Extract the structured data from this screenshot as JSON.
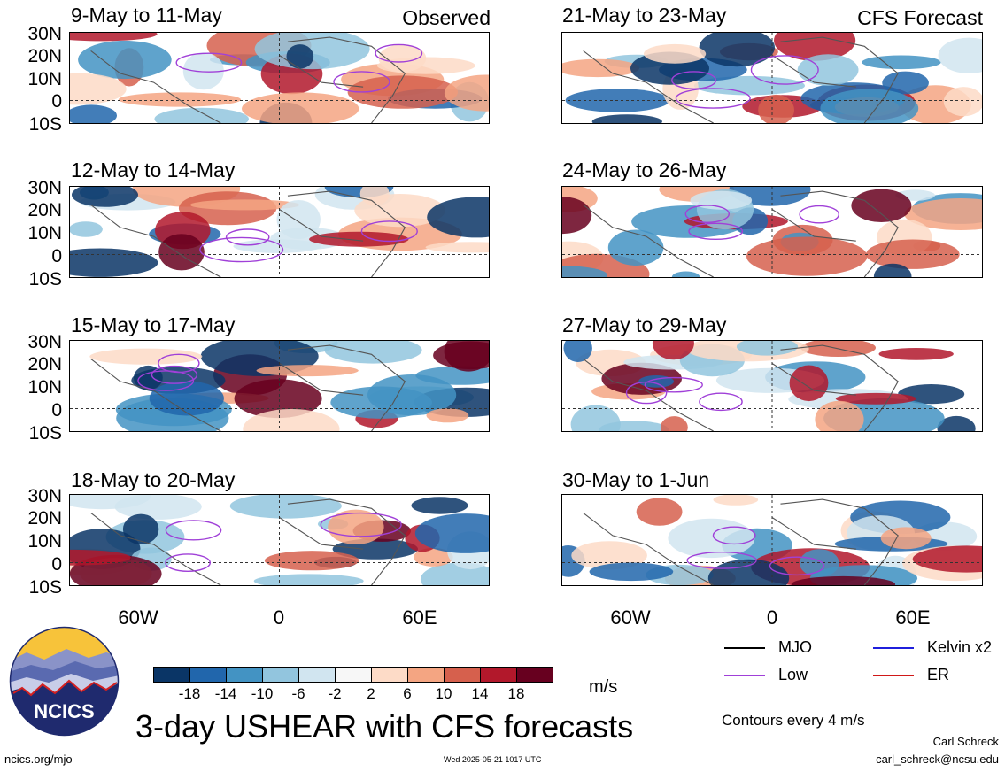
{
  "header": {
    "left_tag": "Observed",
    "right_tag": "CFS Forecast"
  },
  "lat_labels": [
    "30N",
    "20N",
    "10N",
    "0",
    "10S"
  ],
  "lon_labels": [
    "60W",
    "0",
    "60E"
  ],
  "panels": [
    {
      "date": "9-May to 11-May",
      "column": "observed"
    },
    {
      "date": "12-May to 14-May",
      "column": "observed"
    },
    {
      "date": "15-May to 17-May",
      "column": "observed"
    },
    {
      "date": "18-May to 20-May",
      "column": "observed"
    },
    {
      "date": "21-May to 23-May",
      "column": "forecast"
    },
    {
      "date": "24-May to 26-May",
      "column": "forecast"
    },
    {
      "date": "27-May to 29-May",
      "column": "forecast"
    },
    {
      "date": "30-May to 1-Jun",
      "column": "forecast"
    }
  ],
  "colorbar": {
    "labels": [
      "-18",
      "-14",
      "-10",
      "-6",
      "-2",
      "2",
      "6",
      "10",
      "14",
      "18"
    ],
    "colors": [
      "#0a3566",
      "#2166ac",
      "#4393c3",
      "#92c5de",
      "#d1e5f0",
      "#f7f7f7",
      "#fddbc7",
      "#f4a582",
      "#d6604d",
      "#b2182b",
      "#67001f"
    ],
    "unit": "m/s"
  },
  "legend": {
    "items": [
      {
        "label": "MJO",
        "color": "#000000"
      },
      {
        "label": "Kelvin x2",
        "color": "#1f1fdc"
      },
      {
        "label": "Low",
        "color": "#a040d8"
      },
      {
        "label": "ER",
        "color": "#d01818"
      }
    ],
    "contour_note": "Contours every 4 m/s"
  },
  "footer": {
    "title": "3-day USHEAR with CFS forecasts",
    "site": "ncics.org/mjo",
    "timestamp": "Wed 2025-05-21 1017 UTC",
    "author": "Carl Schreck",
    "email": "carl_schreck@ncsu.edu",
    "logo_text": "NCICS"
  }
}
